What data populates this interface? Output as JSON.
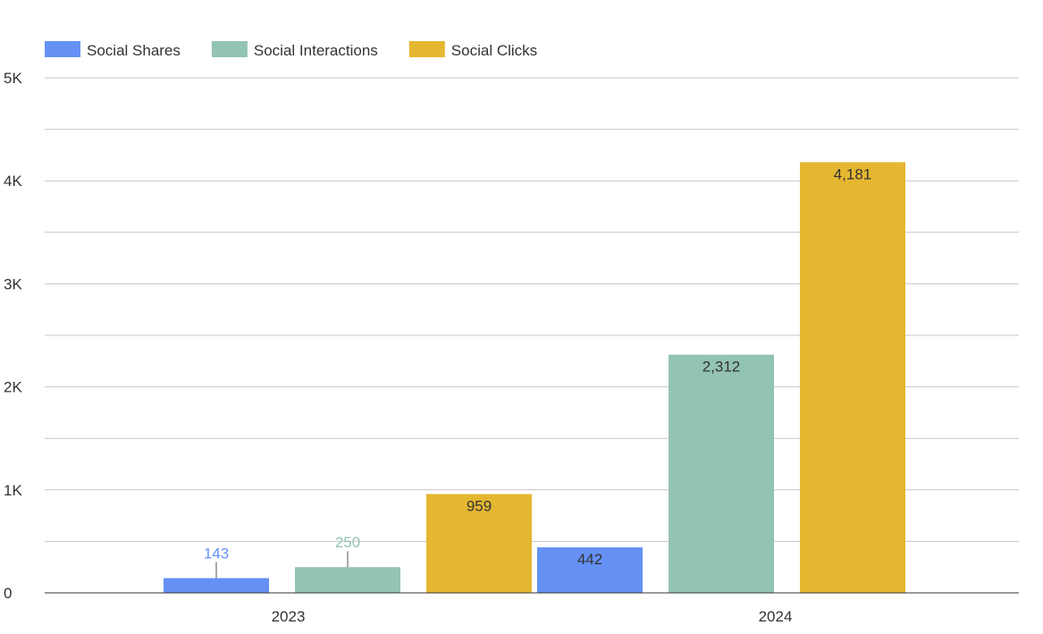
{
  "chart_data": {
    "type": "bar",
    "categories": [
      "2023",
      "2024"
    ],
    "series": [
      {
        "name": "Social Shares",
        "values": [
          143,
          442
        ],
        "color": "#6591f5"
      },
      {
        "name": "Social Interactions",
        "values": [
          250,
          2312
        ],
        "color": "#93c3b2"
      },
      {
        "name": "Social Clicks",
        "values": [
          959,
          4181
        ],
        "color": "#e5b731"
      }
    ],
    "data_labels": [
      [
        "143",
        "250",
        "959"
      ],
      [
        "442",
        "2,312",
        "4,181"
      ]
    ],
    "yticks": [
      0,
      1000,
      2000,
      3000,
      4000,
      5000
    ],
    "ytick_labels": [
      "0",
      "1K",
      "2K",
      "3K",
      "4K",
      "5K"
    ],
    "ylim": [
      0,
      5000
    ],
    "grid": true,
    "legend_position": "top-left",
    "title": "",
    "xlabel": "",
    "ylabel": ""
  }
}
